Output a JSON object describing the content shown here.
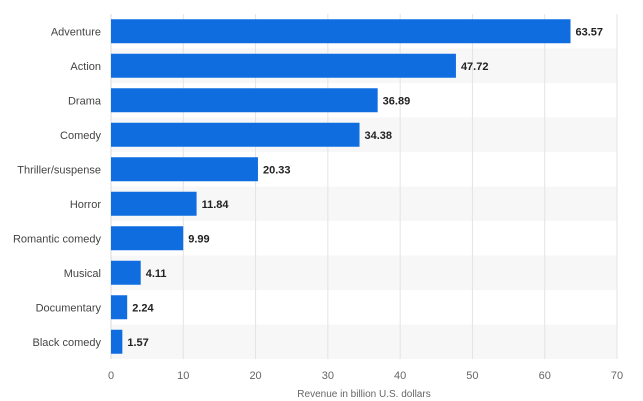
{
  "chart_data": {
    "type": "bar",
    "orientation": "horizontal",
    "title": "",
    "xlabel": "Revenue in billion U.S. dollars",
    "ylabel": "",
    "categories": [
      "Adventure",
      "Action",
      "Drama",
      "Comedy",
      "Thriller/suspense",
      "Horror",
      "Romantic comedy",
      "Musical",
      "Documentary",
      "Black comedy"
    ],
    "values": [
      63.57,
      47.72,
      36.89,
      34.38,
      20.33,
      11.84,
      9.99,
      4.11,
      2.24,
      1.57
    ],
    "value_labels": [
      "63.57",
      "47.72",
      "36.89",
      "34.38",
      "20.33",
      "11.84",
      "9.99",
      "4.11",
      "2.24",
      "1.57"
    ],
    "xlim": [
      0,
      70
    ],
    "xticks": [
      0,
      10,
      20,
      30,
      40,
      50,
      60,
      70
    ],
    "xtick_labels": [
      "0",
      "10",
      "20",
      "30",
      "40",
      "50",
      "60",
      "70"
    ],
    "grid": true,
    "legend": "none",
    "colors": {
      "bar": "#0f6de0",
      "band": "#f7f7f7",
      "grid": "#e3e3e3",
      "axis": "#d9d9d9"
    }
  }
}
